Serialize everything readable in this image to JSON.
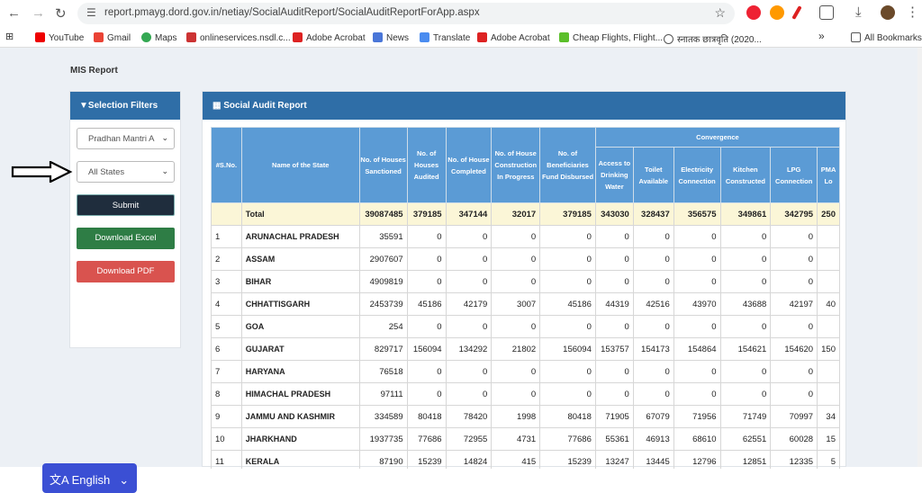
{
  "browser": {
    "url": "report.pmayg.dord.gov.in/netiay/SocialAuditReport/SocialAuditReportForApp.aspx",
    "bookmarks": [
      "YouTube",
      "Gmail",
      "Maps",
      "onlineservices.nsdl.c...",
      "Adobe Acrobat",
      "News",
      "Translate",
      "Adobe Acrobat",
      "Cheap Flights, Flight...",
      "स्नातक छात्रवृति (2020...",
      "All Bookmarks"
    ],
    "overflow": "»"
  },
  "page": {
    "section_title": "MIS Report",
    "filters": {
      "title": "Selection Filters",
      "scheme_value": "Pradhan Mantri A",
      "state_value": "All States",
      "submit": "Submit",
      "excel": "Download Excel",
      "pdf": "Download PDF"
    },
    "report": {
      "title": "Social Audit Report",
      "convergence_label": "Convergence",
      "columns": [
        "#S.No.",
        "Name of the State",
        "No. of Houses Sanctioned",
        "No. of Houses Audited",
        "No. of House Completed",
        "No. of House Construction In Progress",
        "No. of Beneficiaries Fund Disbursed",
        "Access to Drinking Water",
        "Toilet Available",
        "Electricity Connection",
        "Kitchen Constructed",
        "LPG Connection",
        "PMA Lo"
      ],
      "rows": [
        [
          "",
          "Total",
          "39087485",
          "379185",
          "347144",
          "32017",
          "379185",
          "343030",
          "328437",
          "356575",
          "349861",
          "342795",
          "250"
        ],
        [
          "1",
          "ARUNACHAL PRADESH",
          "35591",
          "0",
          "0",
          "0",
          "0",
          "0",
          "0",
          "0",
          "0",
          "0",
          ""
        ],
        [
          "2",
          "ASSAM",
          "2907607",
          "0",
          "0",
          "0",
          "0",
          "0",
          "0",
          "0",
          "0",
          "0",
          ""
        ],
        [
          "3",
          "BIHAR",
          "4909819",
          "0",
          "0",
          "0",
          "0",
          "0",
          "0",
          "0",
          "0",
          "0",
          ""
        ],
        [
          "4",
          "CHHATTISGARH",
          "2453739",
          "45186",
          "42179",
          "3007",
          "45186",
          "44319",
          "42516",
          "43970",
          "43688",
          "42197",
          "40"
        ],
        [
          "5",
          "GOA",
          "254",
          "0",
          "0",
          "0",
          "0",
          "0",
          "0",
          "0",
          "0",
          "0",
          ""
        ],
        [
          "6",
          "GUJARAT",
          "829717",
          "156094",
          "134292",
          "21802",
          "156094",
          "153757",
          "154173",
          "154864",
          "154621",
          "154620",
          "150"
        ],
        [
          "7",
          "HARYANA",
          "76518",
          "0",
          "0",
          "0",
          "0",
          "0",
          "0",
          "0",
          "0",
          "0",
          ""
        ],
        [
          "8",
          "HIMACHAL PRADESH",
          "97111",
          "0",
          "0",
          "0",
          "0",
          "0",
          "0",
          "0",
          "0",
          "0",
          ""
        ],
        [
          "9",
          "JAMMU AND KASHMIR",
          "334589",
          "80418",
          "78420",
          "1998",
          "80418",
          "71905",
          "67079",
          "71956",
          "71749",
          "70997",
          "34"
        ],
        [
          "10",
          "JHARKHAND",
          "1937735",
          "77686",
          "72955",
          "4731",
          "77686",
          "55361",
          "46913",
          "68610",
          "62551",
          "60028",
          "15"
        ],
        [
          "11",
          "KERALA",
          "87190",
          "15239",
          "14824",
          "415",
          "15239",
          "13247",
          "13445",
          "12796",
          "12851",
          "12335",
          "5"
        ]
      ]
    },
    "language": "English"
  }
}
